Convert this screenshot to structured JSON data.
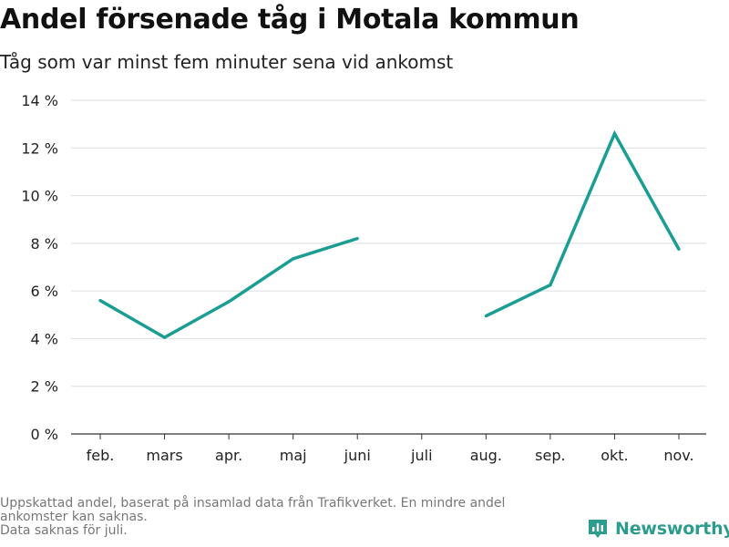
{
  "title": "Andel försenade tåg i Motala kommun",
  "subtitle": "Tåg som var minst fem minuter sena vid ankomst",
  "notes": [
    "Uppskattad andel, baserat på insamlad data från Trafikverket. En mindre andel",
    "ankomster kan saknas.",
    "Data saknas för juli."
  ],
  "brand": {
    "name": "Newsworthy",
    "icon": "newsworthy-logo-icon",
    "color": "#2c9c8e"
  },
  "chart_data": {
    "type": "line",
    "title": "Andel försenade tåg i Motala kommun",
    "subtitle": "Tåg som var minst fem minuter sena vid ankomst",
    "categories": [
      "feb.",
      "mars",
      "apr.",
      "maj",
      "juni",
      "juli",
      "aug.",
      "sep.",
      "okt.",
      "nov."
    ],
    "series": [
      {
        "values": [
          5.6,
          4.05,
          5.55,
          7.35,
          8.2,
          null,
          4.95,
          6.25,
          12.6,
          7.75
        ],
        "color": "#1a9e93"
      }
    ],
    "ylim": [
      0,
      14
    ],
    "yticks": [
      0,
      2,
      4,
      6,
      8,
      10,
      12,
      14
    ],
    "ytick_labels": [
      "0 %",
      "2 %",
      "4 %",
      "6 %",
      "8 %",
      "10 %",
      "12 %",
      "14 %"
    ],
    "xlabel": "",
    "ylabel": "",
    "grid": true,
    "legend": "none"
  }
}
